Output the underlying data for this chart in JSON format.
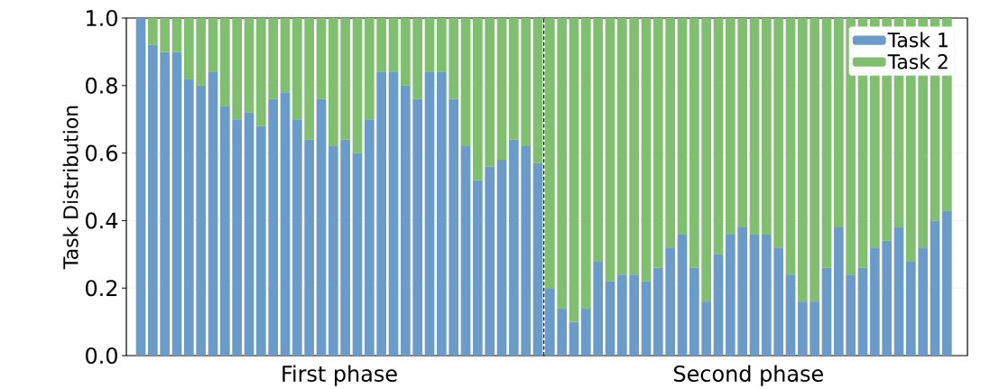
{
  "chart_data": {
    "type": "bar",
    "stacked": true,
    "ylabel": "Task Distribution",
    "categories": [
      null,
      null,
      null,
      null,
      null,
      null,
      null,
      null,
      null,
      null,
      null,
      null,
      null,
      null,
      null,
      null,
      null,
      null,
      null,
      null,
      null,
      null,
      null,
      null,
      null,
      null,
      null,
      null,
      null,
      null,
      null,
      null,
      null,
      null,
      null,
      null,
      null,
      null,
      null,
      null,
      null,
      null,
      null,
      null,
      null,
      null,
      null,
      null,
      null,
      null,
      null,
      null,
      null,
      null,
      null,
      null,
      null,
      null,
      null,
      null,
      null,
      null,
      null,
      null,
      null,
      null,
      null,
      null
    ],
    "annotations": [
      "First phase",
      "Second phase"
    ],
    "ylim": [
      0,
      1
    ],
    "yticks": [
      {
        "value": 0,
        "label": "0.0"
      },
      {
        "value": 0.2,
        "label": "0.2"
      },
      {
        "value": 0.4,
        "label": "0.4"
      },
      {
        "value": 0.6,
        "label": "0.6"
      },
      {
        "value": 0.8,
        "label": "0.8"
      },
      {
        "value": 1,
        "label": "1.0"
      }
    ],
    "grid": "y",
    "legend": "top right",
    "series": [
      {
        "name": "Task 1",
        "color": "#6b9bc8",
        "values": [
          1.0,
          0.92,
          0.9,
          0.9,
          0.82,
          0.8,
          0.84,
          0.74,
          0.7,
          0.72,
          0.68,
          0.76,
          0.78,
          0.7,
          0.64,
          0.76,
          0.62,
          0.64,
          0.6,
          0.7,
          0.84,
          0.84,
          0.8,
          0.76,
          0.84,
          0.84,
          0.76,
          0.62,
          0.52,
          0.56,
          0.58,
          0.64,
          0.62,
          0.57,
          0.2,
          0.14,
          0.1,
          0.14,
          0.28,
          0.22,
          0.24,
          0.24,
          0.22,
          0.26,
          0.32,
          0.36,
          0.26,
          0.16,
          0.3,
          0.36,
          0.38,
          0.36,
          0.36,
          0.32,
          0.24,
          0.16,
          0.16,
          0.26,
          0.38,
          0.24,
          0.26,
          0.32,
          0.34,
          0.38,
          0.28,
          0.32,
          0.4,
          0.43
        ]
      },
      {
        "name": "Task 2",
        "color": "#7fbf6f",
        "values": [
          0.0,
          0.08,
          0.1,
          0.1,
          0.18,
          0.2,
          0.16,
          0.26,
          0.3,
          0.28,
          0.32,
          0.24,
          0.22,
          0.3,
          0.36,
          0.24,
          0.38,
          0.36,
          0.4,
          0.3,
          0.16,
          0.16,
          0.2,
          0.24,
          0.16,
          0.16,
          0.24,
          0.38,
          0.48,
          0.44,
          0.42,
          0.36,
          0.38,
          0.43,
          0.8,
          0.86,
          0.9,
          0.86,
          0.72,
          0.78,
          0.76,
          0.76,
          0.78,
          0.74,
          0.68,
          0.64,
          0.74,
          0.84,
          0.7,
          0.64,
          0.62,
          0.64,
          0.64,
          0.68,
          0.76,
          0.84,
          0.84,
          0.74,
          0.62,
          0.76,
          0.74,
          0.68,
          0.66,
          0.62,
          0.72,
          0.68,
          0.6,
          0.57
        ]
      }
    ]
  }
}
